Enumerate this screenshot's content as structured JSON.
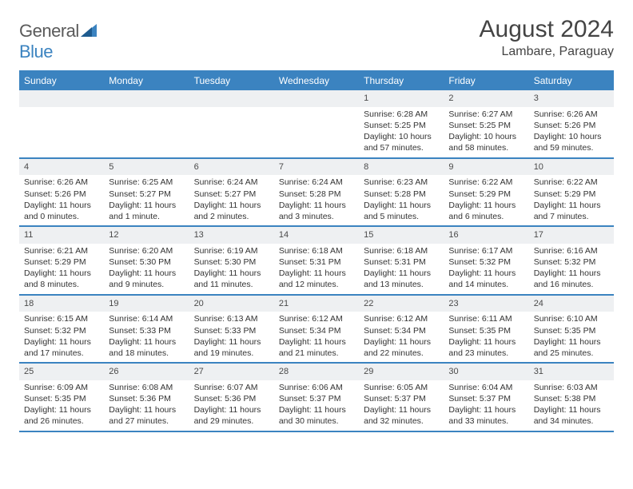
{
  "logo": {
    "general": "General",
    "blue": "Blue"
  },
  "title": "August 2024",
  "location": "Lambare, Paraguay",
  "colors": {
    "accent": "#3b83c0",
    "header_bg": "#3b83c0",
    "header_text": "#ffffff",
    "daynum_bg": "#eef0f2",
    "text": "#333333",
    "background": "#ffffff"
  },
  "day_headers": [
    "Sunday",
    "Monday",
    "Tuesday",
    "Wednesday",
    "Thursday",
    "Friday",
    "Saturday"
  ],
  "weeks": [
    [
      null,
      null,
      null,
      null,
      {
        "n": "1",
        "sr": "Sunrise: 6:28 AM",
        "ss": "Sunset: 5:25 PM",
        "d1": "Daylight: 10 hours",
        "d2": "and 57 minutes."
      },
      {
        "n": "2",
        "sr": "Sunrise: 6:27 AM",
        "ss": "Sunset: 5:25 PM",
        "d1": "Daylight: 10 hours",
        "d2": "and 58 minutes."
      },
      {
        "n": "3",
        "sr": "Sunrise: 6:26 AM",
        "ss": "Sunset: 5:26 PM",
        "d1": "Daylight: 10 hours",
        "d2": "and 59 minutes."
      }
    ],
    [
      {
        "n": "4",
        "sr": "Sunrise: 6:26 AM",
        "ss": "Sunset: 5:26 PM",
        "d1": "Daylight: 11 hours",
        "d2": "and 0 minutes."
      },
      {
        "n": "5",
        "sr": "Sunrise: 6:25 AM",
        "ss": "Sunset: 5:27 PM",
        "d1": "Daylight: 11 hours",
        "d2": "and 1 minute."
      },
      {
        "n": "6",
        "sr": "Sunrise: 6:24 AM",
        "ss": "Sunset: 5:27 PM",
        "d1": "Daylight: 11 hours",
        "d2": "and 2 minutes."
      },
      {
        "n": "7",
        "sr": "Sunrise: 6:24 AM",
        "ss": "Sunset: 5:28 PM",
        "d1": "Daylight: 11 hours",
        "d2": "and 3 minutes."
      },
      {
        "n": "8",
        "sr": "Sunrise: 6:23 AM",
        "ss": "Sunset: 5:28 PM",
        "d1": "Daylight: 11 hours",
        "d2": "and 5 minutes."
      },
      {
        "n": "9",
        "sr": "Sunrise: 6:22 AM",
        "ss": "Sunset: 5:29 PM",
        "d1": "Daylight: 11 hours",
        "d2": "and 6 minutes."
      },
      {
        "n": "10",
        "sr": "Sunrise: 6:22 AM",
        "ss": "Sunset: 5:29 PM",
        "d1": "Daylight: 11 hours",
        "d2": "and 7 minutes."
      }
    ],
    [
      {
        "n": "11",
        "sr": "Sunrise: 6:21 AM",
        "ss": "Sunset: 5:29 PM",
        "d1": "Daylight: 11 hours",
        "d2": "and 8 minutes."
      },
      {
        "n": "12",
        "sr": "Sunrise: 6:20 AM",
        "ss": "Sunset: 5:30 PM",
        "d1": "Daylight: 11 hours",
        "d2": "and 9 minutes."
      },
      {
        "n": "13",
        "sr": "Sunrise: 6:19 AM",
        "ss": "Sunset: 5:30 PM",
        "d1": "Daylight: 11 hours",
        "d2": "and 11 minutes."
      },
      {
        "n": "14",
        "sr": "Sunrise: 6:18 AM",
        "ss": "Sunset: 5:31 PM",
        "d1": "Daylight: 11 hours",
        "d2": "and 12 minutes."
      },
      {
        "n": "15",
        "sr": "Sunrise: 6:18 AM",
        "ss": "Sunset: 5:31 PM",
        "d1": "Daylight: 11 hours",
        "d2": "and 13 minutes."
      },
      {
        "n": "16",
        "sr": "Sunrise: 6:17 AM",
        "ss": "Sunset: 5:32 PM",
        "d1": "Daylight: 11 hours",
        "d2": "and 14 minutes."
      },
      {
        "n": "17",
        "sr": "Sunrise: 6:16 AM",
        "ss": "Sunset: 5:32 PM",
        "d1": "Daylight: 11 hours",
        "d2": "and 16 minutes."
      }
    ],
    [
      {
        "n": "18",
        "sr": "Sunrise: 6:15 AM",
        "ss": "Sunset: 5:32 PM",
        "d1": "Daylight: 11 hours",
        "d2": "and 17 minutes."
      },
      {
        "n": "19",
        "sr": "Sunrise: 6:14 AM",
        "ss": "Sunset: 5:33 PM",
        "d1": "Daylight: 11 hours",
        "d2": "and 18 minutes."
      },
      {
        "n": "20",
        "sr": "Sunrise: 6:13 AM",
        "ss": "Sunset: 5:33 PM",
        "d1": "Daylight: 11 hours",
        "d2": "and 19 minutes."
      },
      {
        "n": "21",
        "sr": "Sunrise: 6:12 AM",
        "ss": "Sunset: 5:34 PM",
        "d1": "Daylight: 11 hours",
        "d2": "and 21 minutes."
      },
      {
        "n": "22",
        "sr": "Sunrise: 6:12 AM",
        "ss": "Sunset: 5:34 PM",
        "d1": "Daylight: 11 hours",
        "d2": "and 22 minutes."
      },
      {
        "n": "23",
        "sr": "Sunrise: 6:11 AM",
        "ss": "Sunset: 5:35 PM",
        "d1": "Daylight: 11 hours",
        "d2": "and 23 minutes."
      },
      {
        "n": "24",
        "sr": "Sunrise: 6:10 AM",
        "ss": "Sunset: 5:35 PM",
        "d1": "Daylight: 11 hours",
        "d2": "and 25 minutes."
      }
    ],
    [
      {
        "n": "25",
        "sr": "Sunrise: 6:09 AM",
        "ss": "Sunset: 5:35 PM",
        "d1": "Daylight: 11 hours",
        "d2": "and 26 minutes."
      },
      {
        "n": "26",
        "sr": "Sunrise: 6:08 AM",
        "ss": "Sunset: 5:36 PM",
        "d1": "Daylight: 11 hours",
        "d2": "and 27 minutes."
      },
      {
        "n": "27",
        "sr": "Sunrise: 6:07 AM",
        "ss": "Sunset: 5:36 PM",
        "d1": "Daylight: 11 hours",
        "d2": "and 29 minutes."
      },
      {
        "n": "28",
        "sr": "Sunrise: 6:06 AM",
        "ss": "Sunset: 5:37 PM",
        "d1": "Daylight: 11 hours",
        "d2": "and 30 minutes."
      },
      {
        "n": "29",
        "sr": "Sunrise: 6:05 AM",
        "ss": "Sunset: 5:37 PM",
        "d1": "Daylight: 11 hours",
        "d2": "and 32 minutes."
      },
      {
        "n": "30",
        "sr": "Sunrise: 6:04 AM",
        "ss": "Sunset: 5:37 PM",
        "d1": "Daylight: 11 hours",
        "d2": "and 33 minutes."
      },
      {
        "n": "31",
        "sr": "Sunrise: 6:03 AM",
        "ss": "Sunset: 5:38 PM",
        "d1": "Daylight: 11 hours",
        "d2": "and 34 minutes."
      }
    ]
  ]
}
